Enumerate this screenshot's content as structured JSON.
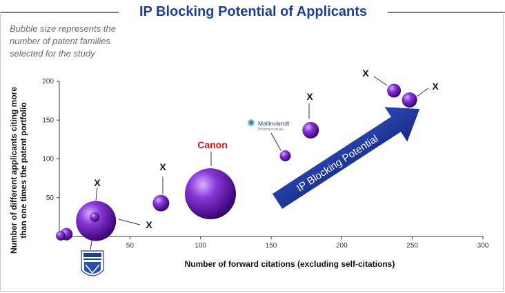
{
  "title": "IP Blocking Potential of Applicants",
  "note": "Bubble size represents the number of patent families selected for the study",
  "arrow_label": "IP Blocking Potential",
  "canon_label": "Canon",
  "mallinckrodt": {
    "name": "Mallinckrodt",
    "sub": "Pharmaceuticals"
  },
  "colors": {
    "bubble": "#6a1fb0",
    "bubble_dark": "#2b0650",
    "bubble_light": "#c79cf0",
    "arrow": "#1f3aa0",
    "title": "#1f3f8f"
  },
  "chart_data": {
    "type": "scatter",
    "title": "IP Blocking Potential of Applicants",
    "xlabel": "Number of forward citations (excluding self-citations)",
    "ylabel": "Number of different applicants citing more than one times the patent portfolio",
    "xlim": [
      0,
      300
    ],
    "ylim": [
      0,
      200
    ],
    "xticks": [
      50,
      100,
      150,
      200,
      250,
      300
    ],
    "yticks": [
      50,
      100,
      150,
      200
    ],
    "grid": false,
    "points": [
      {
        "x": 1,
        "y": 1,
        "size": 7,
        "label": ""
      },
      {
        "x": 5,
        "y": 3,
        "size": 9,
        "label": ""
      },
      {
        "x": 26,
        "y": 20,
        "size": 29,
        "label": "X"
      },
      {
        "x": 25,
        "y": 25,
        "size": 7,
        "label": ""
      },
      {
        "x": 72,
        "y": 43,
        "size": 12,
        "label": "X"
      },
      {
        "x": 107,
        "y": 55,
        "size": 37,
        "label": "Canon"
      },
      {
        "x": 160,
        "y": 104,
        "size": 8,
        "label": "Mallinckrodt"
      },
      {
        "x": 178,
        "y": 137,
        "size": 12,
        "label": "X"
      },
      {
        "x": 237,
        "y": 188,
        "size": 10,
        "label": "X"
      },
      {
        "x": 248,
        "y": 176,
        "size": 11,
        "label": "X"
      }
    ]
  }
}
